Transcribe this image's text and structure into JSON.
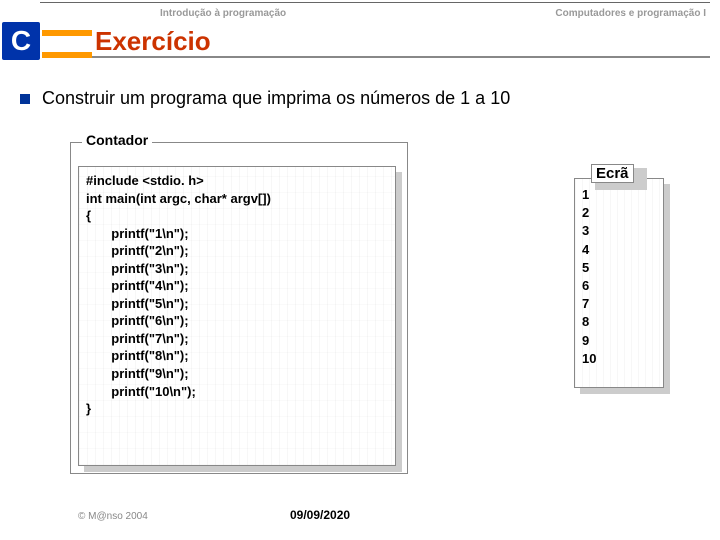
{
  "header": {
    "left": "Introdução à programação",
    "right": "Computadores e programação I"
  },
  "title": "Exercício",
  "body_text": "Construir um  programa que imprima os números de 1 a 10",
  "code_box": {
    "label": "Contador",
    "lines": "#include <stdio. h>\nint main(int argc, char* argv[])\n{\n       printf(\"1\\n\");\n       printf(\"2\\n\");\n       printf(\"3\\n\");\n       printf(\"4\\n\");\n       printf(\"5\\n\");\n       printf(\"6\\n\");\n       printf(\"7\\n\");\n       printf(\"8\\n\");\n       printf(\"9\\n\");\n       printf(\"10\\n\");\n}"
  },
  "output_box": {
    "label": "Ecrã",
    "lines": "1\n2\n3\n4\n5\n6\n7\n8\n9\n10"
  },
  "footer": {
    "copyright": "© M@nso 2004",
    "date": "09/09/2020"
  },
  "colors": {
    "title_color": "#cc3300",
    "accent_orange": "#ff9900",
    "bullet_blue": "#003399",
    "logo_blue": "#0033aa"
  }
}
